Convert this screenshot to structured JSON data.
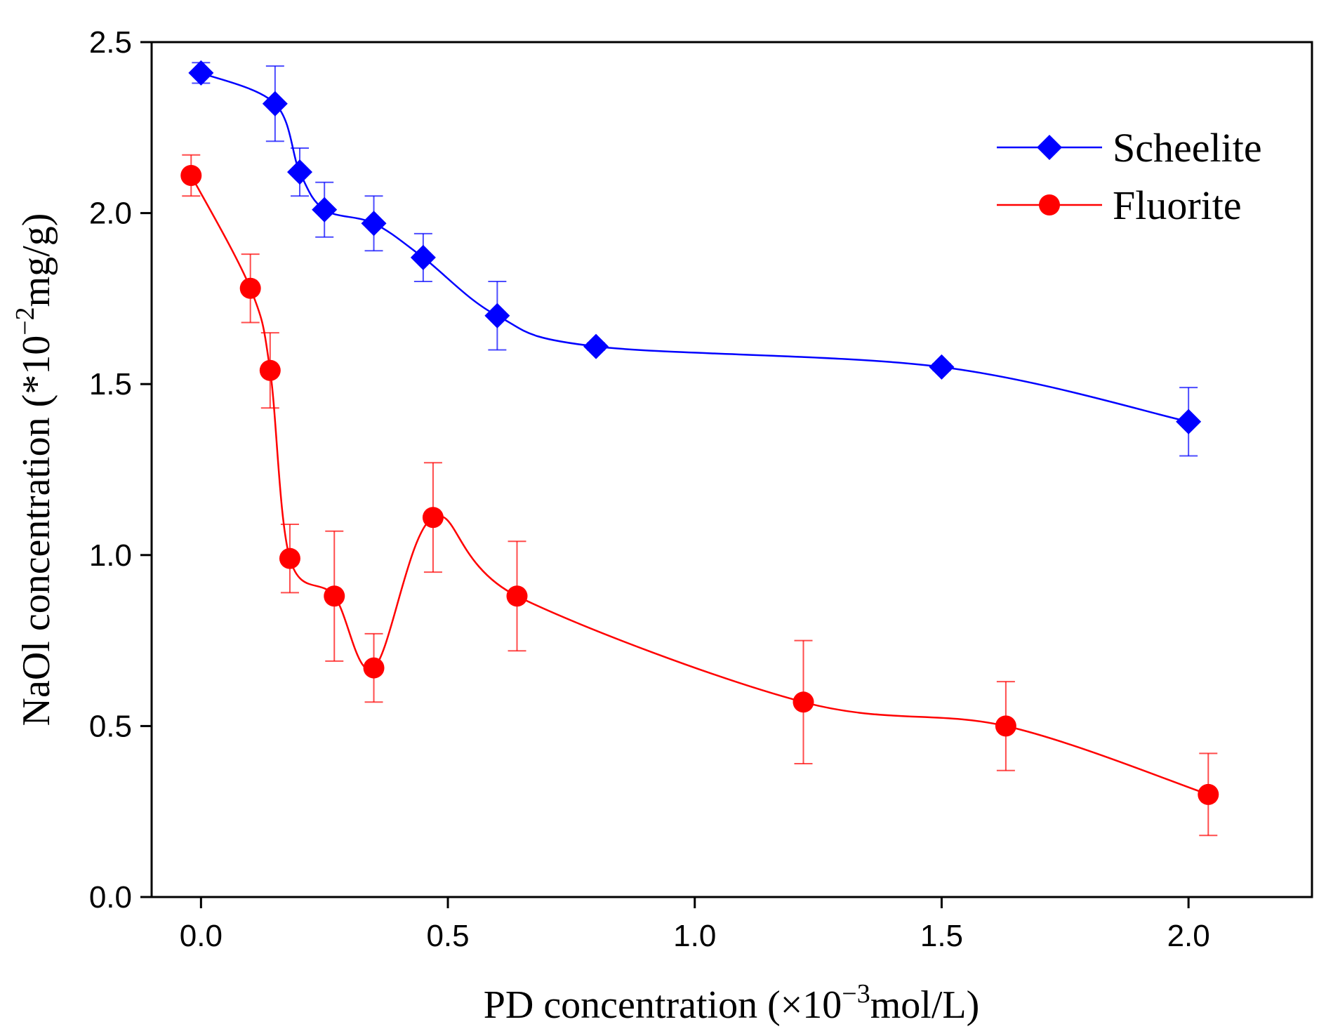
{
  "chart_data": {
    "type": "line",
    "title": "",
    "xlabel": {
      "prefix": "PD concentration (×10",
      "sup": "−3",
      "suffix": "mol/L)"
    },
    "ylabel": {
      "prefix": "NaOl concentration (*10",
      "sup": "−2",
      "suffix": "mg/g)"
    },
    "xlim": [
      -0.1,
      2.25
    ],
    "ylim": [
      0.0,
      2.5
    ],
    "xticks": [
      0.0,
      0.5,
      1.0,
      1.5,
      2.0
    ],
    "xtick_labels": [
      "0.0",
      "0.5",
      "1.0",
      "1.5",
      "2.0"
    ],
    "yticks": [
      0.0,
      0.5,
      1.0,
      1.5,
      2.0,
      2.5
    ],
    "ytick_labels": [
      "0.0",
      "0.5",
      "1.0",
      "1.5",
      "2.0",
      "2.5"
    ],
    "legend_position": "top-right",
    "series": [
      {
        "name": "Scheelite",
        "color": "#0000ff",
        "marker": "diamond",
        "x": [
          0.0,
          0.15,
          0.2,
          0.25,
          0.35,
          0.45,
          0.6,
          0.8,
          1.5,
          2.0
        ],
        "y": [
          2.41,
          2.32,
          2.12,
          2.01,
          1.97,
          1.87,
          1.7,
          1.61,
          1.55,
          1.39
        ],
        "err": [
          0.03,
          0.11,
          0.07,
          0.08,
          0.08,
          0.07,
          0.1,
          0.01,
          0.01,
          0.1
        ]
      },
      {
        "name": "Fluorite",
        "color": "#ff0000",
        "marker": "circle",
        "x": [
          -0.02,
          0.1,
          0.14,
          0.18,
          0.27,
          0.35,
          0.47,
          0.64,
          1.22,
          1.63,
          2.04
        ],
        "y": [
          2.11,
          1.78,
          1.54,
          0.99,
          0.88,
          0.67,
          1.11,
          0.88,
          0.57,
          0.5,
          0.3
        ],
        "err": [
          0.06,
          0.1,
          0.11,
          0.1,
          0.19,
          0.1,
          0.16,
          0.16,
          0.18,
          0.13,
          0.12
        ]
      }
    ]
  }
}
